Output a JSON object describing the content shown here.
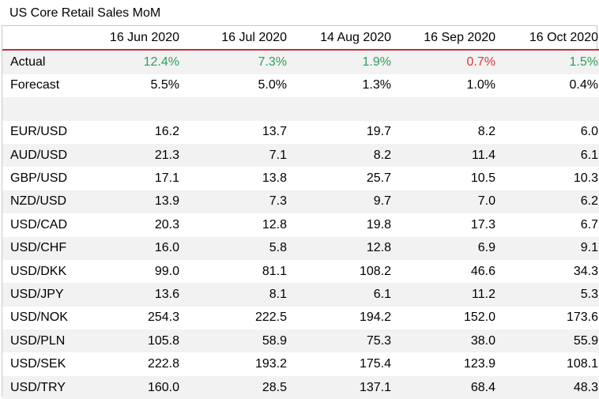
{
  "title": "US Core Retail Sales MoM",
  "colors": {
    "positive": "#2e9e5a",
    "negative": "#d9363e",
    "header_rule": "#c0303a",
    "stripe": "#f2f2f2"
  },
  "chart_data": {
    "type": "table",
    "title": "US Core Retail Sales MoM",
    "columns": [
      "16 Jun 2020",
      "16 Jul 2020",
      "14 Aug 2020",
      "16 Sep 2020",
      "16 Oct 2020"
    ],
    "rows": [
      {
        "label": "Actual",
        "values": [
          "12.4%",
          "7.3%",
          "1.9%",
          "0.7%",
          "1.5%"
        ],
        "status": [
          "pos",
          "pos",
          "pos",
          "neg",
          "pos"
        ]
      },
      {
        "label": "Forecast",
        "values": [
          "5.5%",
          "5.0%",
          "1.3%",
          "1.0%",
          "0.4%"
        ]
      },
      {
        "label": "",
        "values": [
          "",
          "",
          "",
          "",
          ""
        ]
      },
      {
        "label": "EUR/USD",
        "values": [
          "16.2",
          "13.7",
          "19.7",
          "8.2",
          "6.0"
        ]
      },
      {
        "label": "AUD/USD",
        "values": [
          "21.3",
          "7.1",
          "8.2",
          "11.4",
          "6.1"
        ]
      },
      {
        "label": "GBP/USD",
        "values": [
          "17.1",
          "13.8",
          "25.7",
          "10.5",
          "10.3"
        ]
      },
      {
        "label": "NZD/USD",
        "values": [
          "13.9",
          "7.3",
          "9.7",
          "7.0",
          "6.2"
        ]
      },
      {
        "label": "USD/CAD",
        "values": [
          "20.3",
          "12.8",
          "19.8",
          "17.3",
          "6.7"
        ]
      },
      {
        "label": "USD/CHF",
        "values": [
          "16.0",
          "5.8",
          "12.8",
          "6.9",
          "9.1"
        ]
      },
      {
        "label": "USD/DKK",
        "values": [
          "99.0",
          "81.1",
          "108.2",
          "46.6",
          "34.3"
        ]
      },
      {
        "label": "USD/JPY",
        "values": [
          "13.6",
          "8.1",
          "6.1",
          "11.2",
          "5.3"
        ]
      },
      {
        "label": "USD/NOK",
        "values": [
          "254.3",
          "222.5",
          "194.2",
          "152.0",
          "173.6"
        ]
      },
      {
        "label": "USD/PLN",
        "values": [
          "105.8",
          "58.9",
          "75.3",
          "38.0",
          "55.9"
        ]
      },
      {
        "label": "USD/SEK",
        "values": [
          "222.8",
          "193.2",
          "175.4",
          "123.9",
          "108.1"
        ]
      },
      {
        "label": "USD/TRY",
        "values": [
          "160.0",
          "28.5",
          "137.1",
          "68.4",
          "48.3"
        ]
      }
    ]
  }
}
